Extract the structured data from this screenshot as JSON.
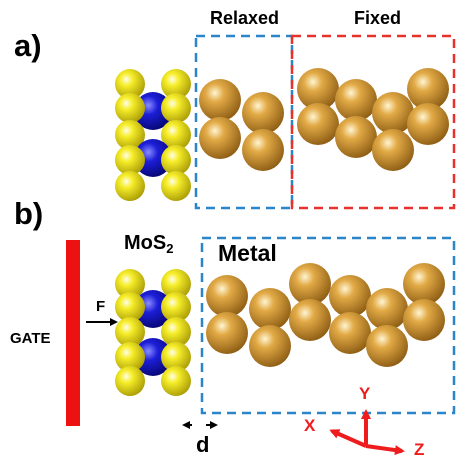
{
  "labels": {
    "panel_a": "a)",
    "panel_b": "b)",
    "relaxed": "Relaxed",
    "fixed": "Fixed",
    "mos2_main": "MoS",
    "mos2_sub": "2",
    "metal": "Metal",
    "gate": "GATE",
    "force": "F",
    "distance": "d",
    "axis_y": "Y",
    "axis_x": "X",
    "axis_z": "Z"
  },
  "colors": {
    "sulfur": "#f2ea1c",
    "molybdenum": "#1a1ad6",
    "metal_atom": "#d9a23c",
    "relaxed_box": "#2b86c9",
    "fixed_box": "#e8312a",
    "gate": "#ee1111",
    "axes": "#ee1c1c"
  }
}
